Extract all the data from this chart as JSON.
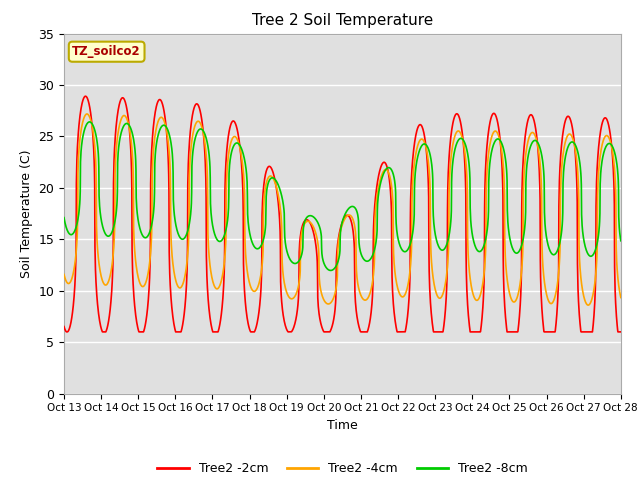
{
  "title": "Tree 2 Soil Temperature",
  "xlabel": "Time",
  "ylabel": "Soil Temperature (C)",
  "annotation": "TZ_soilco2",
  "x_tick_labels": [
    "Oct 13",
    "Oct 14",
    "Oct 15",
    "Oct 16",
    "Oct 17",
    "Oct 18",
    "Oct 19",
    "Oct 20",
    "Oct 21",
    "Oct 22",
    "Oct 23",
    "Oct 24",
    "Oct 25",
    "Oct 26",
    "Oct 27",
    "Oct 28"
  ],
  "ylim": [
    0,
    35
  ],
  "yticks": [
    0,
    5,
    10,
    15,
    20,
    25,
    30,
    35
  ],
  "color_2cm": "#FF0000",
  "color_4cm": "#FFA500",
  "color_8cm": "#00CC00",
  "legend_labels": [
    "Tree2 -2cm",
    "Tree2 -4cm",
    "Tree2 -8cm"
  ],
  "bg_color": "#E0E0E0",
  "line_width": 1.2,
  "n_days": 15,
  "points_per_day": 144
}
